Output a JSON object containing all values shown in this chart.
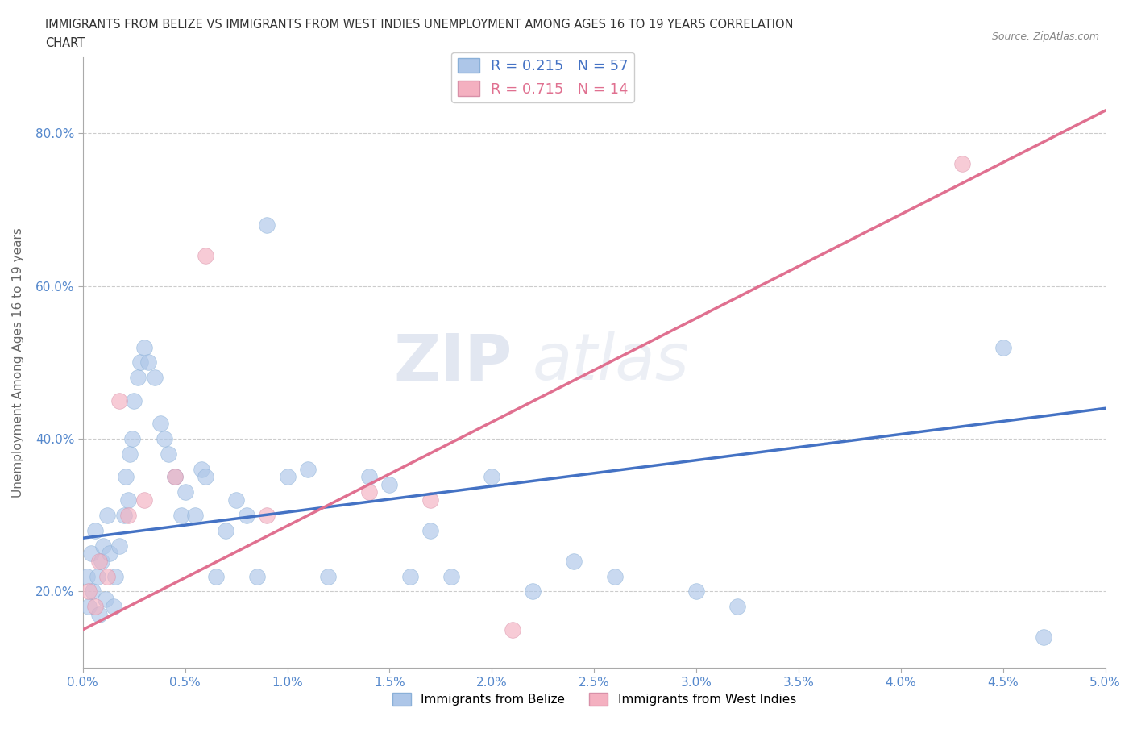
{
  "title_line1": "IMMIGRANTS FROM BELIZE VS IMMIGRANTS FROM WEST INDIES UNEMPLOYMENT AMONG AGES 16 TO 19 YEARS CORRELATION",
  "title_line2": "CHART",
  "source": "Source: ZipAtlas.com",
  "ylabel": "Unemployment Among Ages 16 to 19 years",
  "xlim": [
    0.0,
    5.0
  ],
  "ylim": [
    10.0,
    90.0
  ],
  "belize_R": 0.215,
  "belize_N": 57,
  "westindies_R": 0.715,
  "westindies_N": 14,
  "belize_color": "#adc6e8",
  "belize_line_color": "#4472c4",
  "westindies_color": "#f4b0c0",
  "westindies_line_color": "#e07090",
  "belize_scatter_x": [
    0.02,
    0.03,
    0.04,
    0.05,
    0.06,
    0.07,
    0.08,
    0.09,
    0.1,
    0.11,
    0.12,
    0.13,
    0.15,
    0.16,
    0.18,
    0.2,
    0.21,
    0.22,
    0.23,
    0.24,
    0.25,
    0.27,
    0.28,
    0.3,
    0.32,
    0.35,
    0.38,
    0.4,
    0.42,
    0.45,
    0.48,
    0.5,
    0.55,
    0.58,
    0.6,
    0.65,
    0.7,
    0.75,
    0.8,
    0.85,
    0.9,
    1.0,
    1.1,
    1.2,
    1.4,
    1.5,
    1.6,
    1.7,
    1.8,
    2.0,
    2.2,
    2.4,
    2.6,
    3.0,
    3.2,
    4.5,
    4.7
  ],
  "belize_scatter_y": [
    22,
    18,
    25,
    20,
    28,
    22,
    17,
    24,
    26,
    19,
    30,
    25,
    18,
    22,
    26,
    30,
    35,
    32,
    38,
    40,
    45,
    48,
    50,
    52,
    50,
    48,
    42,
    40,
    38,
    35,
    30,
    33,
    30,
    36,
    35,
    22,
    28,
    32,
    30,
    22,
    68,
    35,
    36,
    22,
    35,
    34,
    22,
    28,
    22,
    35,
    20,
    24,
    22,
    20,
    18,
    52,
    14
  ],
  "westindies_scatter_x": [
    0.03,
    0.06,
    0.08,
    0.12,
    0.18,
    0.22,
    0.3,
    0.45,
    0.6,
    0.9,
    1.4,
    1.7,
    2.1,
    4.3
  ],
  "westindies_scatter_y": [
    20,
    18,
    24,
    22,
    45,
    30,
    32,
    35,
    64,
    30,
    33,
    32,
    15,
    76
  ],
  "belize_trend_x0": 0.0,
  "belize_trend_y0": 27.0,
  "belize_trend_x1": 5.0,
  "belize_trend_y1": 44.0,
  "westindies_trend_x0": 0.0,
  "westindies_trend_y0": 15.0,
  "westindies_trend_x1": 5.0,
  "westindies_trend_y1": 83.0
}
